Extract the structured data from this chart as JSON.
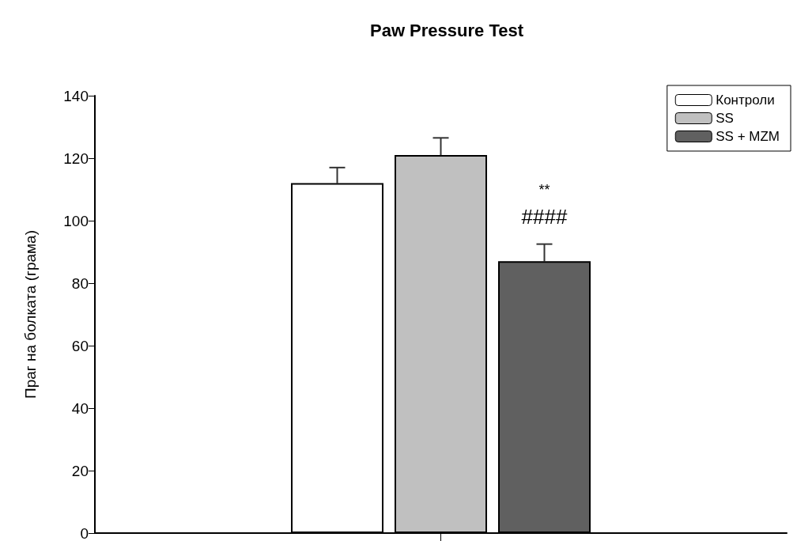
{
  "chart_data": {
    "type": "bar",
    "title": "Paw Pressure Test",
    "ylabel": "Праг на болката (грама)",
    "categories": [
      null
    ],
    "series": [
      {
        "name": "Контроли",
        "color": "#ffffff",
        "values": [
          112
        ],
        "errors": [
          5
        ]
      },
      {
        "name": "SS",
        "color": "#c0c0c0",
        "values": [
          121
        ],
        "errors": [
          5.5
        ]
      },
      {
        "name": "SS + MZM",
        "color": "#606060",
        "values": [
          87
        ],
        "errors": [
          5.5
        ]
      }
    ],
    "annotations": [
      "**",
      "####"
    ],
    "ylim": [
      0,
      140
    ],
    "yticks": [
      0,
      20,
      40,
      60,
      80,
      100,
      120,
      140
    ],
    "legend": "top right",
    "grid": false
  }
}
